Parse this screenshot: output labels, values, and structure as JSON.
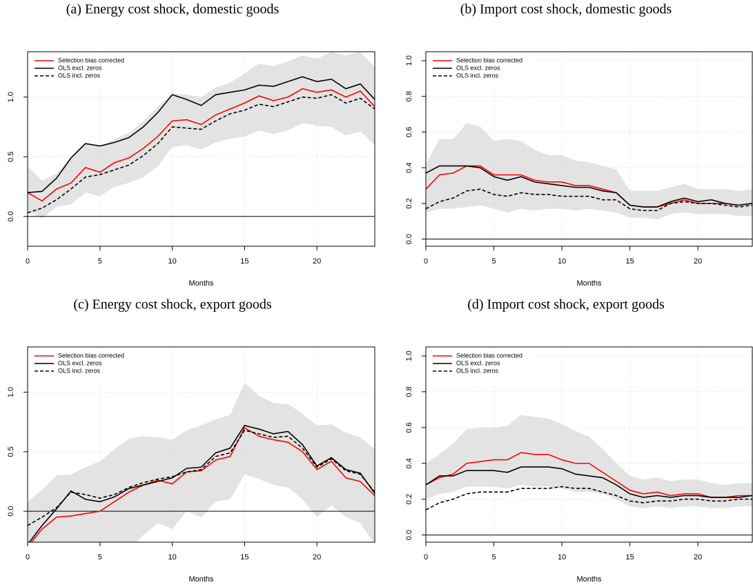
{
  "chart_data": [
    {
      "type": "line",
      "title": "(a) Energy cost shock, domestic goods",
      "xlabel": "Months",
      "x": [
        0,
        1,
        2,
        3,
        4,
        5,
        6,
        7,
        8,
        9,
        10,
        11,
        12,
        13,
        14,
        15,
        16,
        17,
        18,
        19,
        20,
        21,
        22,
        23,
        24
      ],
      "xlim": [
        0,
        24
      ],
      "xticks": [
        0,
        5,
        10,
        15,
        20
      ],
      "ylim": [
        -0.25,
        1.38
      ],
      "yticks": [
        {
          "value": 0,
          "label": "0.0"
        },
        0.5,
        {
          "value": 1,
          "label": "1.0"
        }
      ],
      "grid": true,
      "hline": 0,
      "legend": "top-left",
      "band": {
        "color": "#e3e3e3",
        "lower": [
          0.05,
          -0.02,
          0.08,
          0.1,
          0.2,
          0.17,
          0.25,
          0.28,
          0.33,
          0.42,
          0.58,
          0.6,
          0.56,
          0.62,
          0.65,
          0.67,
          0.72,
          0.69,
          0.72,
          0.78,
          0.76,
          0.75,
          0.68,
          0.71,
          0.6
        ],
        "upper": [
          0.42,
          0.3,
          0.36,
          0.5,
          0.62,
          0.58,
          0.65,
          0.7,
          0.8,
          0.92,
          1.03,
          1.02,
          1.0,
          1.08,
          1.12,
          1.2,
          1.28,
          1.26,
          1.3,
          1.35,
          1.32,
          1.38,
          1.35,
          1.38,
          1.25
        ]
      },
      "series": [
        {
          "name": "Selection bias corrected",
          "color": "#ff0000",
          "dashed": false,
          "values": [
            0.2,
            0.13,
            0.23,
            0.28,
            0.41,
            0.37,
            0.45,
            0.49,
            0.57,
            0.67,
            0.8,
            0.81,
            0.77,
            0.85,
            0.9,
            0.95,
            1.01,
            0.97,
            1.0,
            1.07,
            1.04,
            1.06,
            1.0,
            1.05,
            0.92
          ]
        },
        {
          "name": "OLS excl. zeros",
          "color": "#000000",
          "dashed": false,
          "values": [
            0.2,
            0.21,
            0.32,
            0.49,
            0.61,
            0.59,
            0.62,
            0.66,
            0.75,
            0.87,
            1.02,
            0.98,
            0.93,
            1.02,
            1.04,
            1.06,
            1.1,
            1.09,
            1.13,
            1.17,
            1.13,
            1.15,
            1.07,
            1.11,
            0.98
          ]
        },
        {
          "name": "OLS incl. zeros",
          "color": "#000000",
          "dashed": true,
          "values": [
            0.03,
            0.07,
            0.14,
            0.23,
            0.33,
            0.35,
            0.39,
            0.43,
            0.51,
            0.61,
            0.75,
            0.74,
            0.73,
            0.8,
            0.86,
            0.89,
            0.94,
            0.92,
            0.96,
            1.0,
            0.99,
            1.02,
            0.95,
            0.99,
            0.9
          ]
        }
      ]
    },
    {
      "type": "line",
      "title": "(b) Import cost shock, domestic goods",
      "xlabel": "Months",
      "x": [
        0,
        1,
        2,
        3,
        4,
        5,
        6,
        7,
        8,
        9,
        10,
        11,
        12,
        13,
        14,
        15,
        16,
        17,
        18,
        19,
        20,
        21,
        22,
        23,
        24
      ],
      "xlim": [
        0,
        24
      ],
      "xticks": [
        0,
        5,
        10,
        15,
        20
      ],
      "ylim": [
        -0.04,
        1.05
      ],
      "yticks": [
        {
          "value": 0,
          "label": "0.0"
        },
        0.2,
        0.4,
        0.6,
        0.8,
        {
          "value": 1,
          "label": "1.0"
        }
      ],
      "grid": true,
      "hline": 0,
      "legend": "top-left",
      "band": {
        "color": "#e3e3e3",
        "lower": [
          0.15,
          0.17,
          0.17,
          0.18,
          0.19,
          0.17,
          0.15,
          0.17,
          0.16,
          0.17,
          0.17,
          0.16,
          0.17,
          0.16,
          0.15,
          0.12,
          0.12,
          0.11,
          0.14,
          0.15,
          0.14,
          0.14,
          0.14,
          0.13,
          0.13
        ],
        "upper": [
          0.42,
          0.56,
          0.56,
          0.65,
          0.63,
          0.55,
          0.56,
          0.55,
          0.5,
          0.47,
          0.47,
          0.44,
          0.43,
          0.41,
          0.39,
          0.27,
          0.27,
          0.27,
          0.29,
          0.31,
          0.28,
          0.28,
          0.28,
          0.27,
          0.28
        ]
      },
      "series": [
        {
          "name": "Selection bias corrected",
          "color": "#ff0000",
          "dashed": false,
          "values": [
            0.28,
            0.36,
            0.37,
            0.41,
            0.41,
            0.36,
            0.36,
            0.36,
            0.33,
            0.32,
            0.32,
            0.3,
            0.3,
            0.28,
            0.26,
            0.19,
            0.18,
            0.18,
            0.2,
            0.22,
            0.2,
            0.2,
            0.2,
            0.19,
            0.2
          ]
        },
        {
          "name": "OLS excl. zeros",
          "color": "#000000",
          "dashed": false,
          "values": [
            0.37,
            0.41,
            0.41,
            0.41,
            0.4,
            0.35,
            0.33,
            0.35,
            0.32,
            0.31,
            0.3,
            0.29,
            0.29,
            0.27,
            0.26,
            0.19,
            0.18,
            0.18,
            0.21,
            0.23,
            0.21,
            0.22,
            0.2,
            0.19,
            0.2
          ]
        },
        {
          "name": "OLS incl. zeros",
          "color": "#000000",
          "dashed": true,
          "values": [
            0.17,
            0.21,
            0.23,
            0.27,
            0.28,
            0.25,
            0.24,
            0.26,
            0.25,
            0.25,
            0.24,
            0.24,
            0.24,
            0.22,
            0.22,
            0.17,
            0.16,
            0.16,
            0.2,
            0.21,
            0.2,
            0.2,
            0.19,
            0.18,
            0.19
          ]
        }
      ]
    },
    {
      "type": "line",
      "title": "(c) Energy cost shock, export goods",
      "xlabel": "Months",
      "x": [
        0,
        1,
        2,
        3,
        4,
        5,
        6,
        7,
        8,
        9,
        10,
        11,
        12,
        13,
        14,
        15,
        16,
        17,
        18,
        19,
        20,
        21,
        22,
        23,
        24
      ],
      "xlim": [
        0,
        24
      ],
      "xticks": [
        0,
        5,
        10,
        15,
        20
      ],
      "ylim": [
        -0.26,
        1.38
      ],
      "yticks": [
        {
          "value": 0,
          "label": "0.0"
        },
        0.5,
        {
          "value": 1,
          "label": "1.0"
        }
      ],
      "grid": true,
      "hline": 0,
      "legend": "top-left",
      "band": {
        "color": "#e3e3e3",
        "lower": [
          -0.35,
          -0.35,
          -0.35,
          -0.35,
          -0.35,
          -0.35,
          -0.35,
          -0.32,
          -0.2,
          -0.1,
          -0.15,
          0.0,
          -0.05,
          0.08,
          0.1,
          0.31,
          0.27,
          0.22,
          0.2,
          0.1,
          -0.05,
          0.05,
          -0.05,
          -0.1,
          -0.28
        ],
        "upper": [
          0.08,
          0.18,
          0.3,
          0.31,
          0.37,
          0.42,
          0.52,
          0.61,
          0.63,
          0.62,
          0.6,
          0.68,
          0.72,
          0.77,
          0.81,
          1.08,
          0.97,
          0.91,
          0.9,
          0.82,
          0.72,
          0.73,
          0.66,
          0.62,
          0.52
        ]
      },
      "series": [
        {
          "name": "Selection bias corrected",
          "color": "#ff0000",
          "dashed": false,
          "values": [
            -0.3,
            -0.15,
            -0.05,
            -0.04,
            -0.02,
            0.0,
            0.08,
            0.16,
            0.22,
            0.26,
            0.23,
            0.33,
            0.34,
            0.43,
            0.46,
            0.7,
            0.63,
            0.6,
            0.58,
            0.5,
            0.35,
            0.42,
            0.28,
            0.25,
            0.13
          ]
        },
        {
          "name": "OLS excl. zeros",
          "color": "#000000",
          "dashed": false,
          "values": [
            -0.28,
            -0.12,
            0.02,
            0.17,
            0.1,
            0.08,
            0.12,
            0.19,
            0.22,
            0.25,
            0.28,
            0.36,
            0.37,
            0.49,
            0.53,
            0.72,
            0.69,
            0.65,
            0.67,
            0.56,
            0.38,
            0.45,
            0.35,
            0.32,
            0.15
          ]
        },
        {
          "name": "OLS incl. zeros",
          "color": "#000000",
          "dashed": true,
          "values": [
            -0.12,
            -0.05,
            0.03,
            0.16,
            0.14,
            0.11,
            0.14,
            0.2,
            0.24,
            0.27,
            0.29,
            0.33,
            0.35,
            0.46,
            0.49,
            0.68,
            0.65,
            0.62,
            0.63,
            0.53,
            0.37,
            0.44,
            0.34,
            0.31,
            0.16
          ]
        }
      ]
    },
    {
      "type": "line",
      "title": "(d) Import cost shock, export goods",
      "xlabel": "Months",
      "x": [
        0,
        1,
        2,
        3,
        4,
        5,
        6,
        7,
        8,
        9,
        10,
        11,
        12,
        13,
        14,
        15,
        16,
        17,
        18,
        19,
        20,
        21,
        22,
        23,
        24
      ],
      "xlim": [
        0,
        24
      ],
      "xticks": [
        0,
        5,
        10,
        15,
        20
      ],
      "ylim": [
        -0.04,
        1.05
      ],
      "yticks": [
        {
          "value": 0,
          "label": "0.0"
        },
        0.2,
        0.4,
        0.6,
        0.8,
        {
          "value": 1,
          "label": "1.0"
        }
      ],
      "grid": true,
      "hline": 0,
      "legend": "top-left",
      "band": {
        "color": "#e3e3e3",
        "lower": [
          0.2,
          0.23,
          0.24,
          0.27,
          0.27,
          0.27,
          0.26,
          0.28,
          0.27,
          0.27,
          0.26,
          0.24,
          0.24,
          0.23,
          0.2,
          0.16,
          0.15,
          0.16,
          0.15,
          0.16,
          0.16,
          0.15,
          0.15,
          0.16,
          0.16
        ],
        "upper": [
          0.4,
          0.45,
          0.51,
          0.59,
          0.6,
          0.6,
          0.61,
          0.67,
          0.66,
          0.65,
          0.62,
          0.58,
          0.55,
          0.48,
          0.4,
          0.33,
          0.31,
          0.32,
          0.3,
          0.31,
          0.31,
          0.29,
          0.28,
          0.29,
          0.29
        ]
      },
      "series": [
        {
          "name": "Selection bias corrected",
          "color": "#ff0000",
          "dashed": false,
          "values": [
            0.28,
            0.32,
            0.34,
            0.4,
            0.41,
            0.42,
            0.42,
            0.46,
            0.45,
            0.45,
            0.42,
            0.4,
            0.4,
            0.35,
            0.3,
            0.25,
            0.23,
            0.24,
            0.22,
            0.23,
            0.23,
            0.21,
            0.21,
            0.22,
            0.22
          ]
        },
        {
          "name": "OLS excl. zeros",
          "color": "#000000",
          "dashed": false,
          "values": [
            0.28,
            0.33,
            0.33,
            0.36,
            0.36,
            0.36,
            0.35,
            0.38,
            0.38,
            0.38,
            0.37,
            0.34,
            0.33,
            0.32,
            0.28,
            0.23,
            0.21,
            0.22,
            0.21,
            0.22,
            0.22,
            0.21,
            0.21,
            0.21,
            0.22
          ]
        },
        {
          "name": "OLS incl. zeros",
          "color": "#000000",
          "dashed": true,
          "values": [
            0.14,
            0.18,
            0.2,
            0.23,
            0.24,
            0.24,
            0.24,
            0.26,
            0.26,
            0.26,
            0.27,
            0.26,
            0.26,
            0.24,
            0.22,
            0.19,
            0.18,
            0.19,
            0.19,
            0.2,
            0.2,
            0.19,
            0.19,
            0.2,
            0.2
          ]
        }
      ]
    }
  ]
}
